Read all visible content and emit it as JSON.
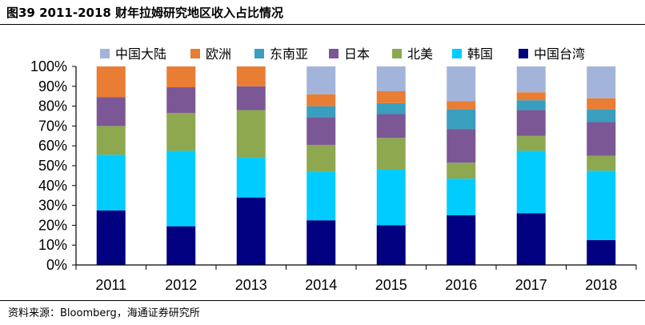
{
  "header": {
    "title": "图39 2011-2018 财年拉姆研究地区收入占比情况"
  },
  "source": {
    "text": "资料来源：Bloomberg，海通证券研究所"
  },
  "chart_data": {
    "type": "bar",
    "stacked": true,
    "categories": [
      "2011",
      "2012",
      "2013",
      "2014",
      "2015",
      "2016",
      "2017",
      "2018"
    ],
    "ylim": [
      0,
      100
    ],
    "yticks": [
      "0%",
      "10%",
      "20%",
      "30%",
      "40%",
      "50%",
      "60%",
      "70%",
      "80%",
      "90%",
      "100%"
    ],
    "legend_position": "top",
    "grid": false,
    "series": [
      {
        "name": "中国台湾",
        "color": "#000080",
        "values": [
          27.5,
          19.5,
          34,
          22.5,
          20,
          25,
          26,
          12.5
        ]
      },
      {
        "name": "韩国",
        "color": "#00CCFF",
        "values": [
          28,
          38,
          20,
          24.5,
          28,
          18.5,
          31.5,
          35
        ]
      },
      {
        "name": "北美",
        "color": "#8DA84F",
        "values": [
          14.5,
          19,
          24,
          13.5,
          16,
          8,
          7.5,
          7.5
        ]
      },
      {
        "name": "日本",
        "color": "#7B5796",
        "values": [
          14.5,
          13,
          12,
          14,
          12,
          17,
          13,
          17
        ]
      },
      {
        "name": "东南亚",
        "color": "#3A9EBF",
        "values": [
          0,
          0,
          0,
          5.5,
          5.5,
          10,
          5,
          6.5
        ]
      },
      {
        "name": "欧洲",
        "color": "#E97D33",
        "values": [
          15.5,
          10.5,
          10,
          6,
          6,
          4,
          4,
          5.5
        ]
      },
      {
        "name": "中国大陆",
        "color": "#A3B4DA",
        "values": [
          0,
          0,
          0,
          14,
          12.5,
          17.5,
          13,
          16
        ]
      }
    ],
    "legend_order": [
      "中国大陆",
      "欧洲",
      "东南亚",
      "日本",
      "北美",
      "韩国",
      "中国台湾"
    ]
  }
}
